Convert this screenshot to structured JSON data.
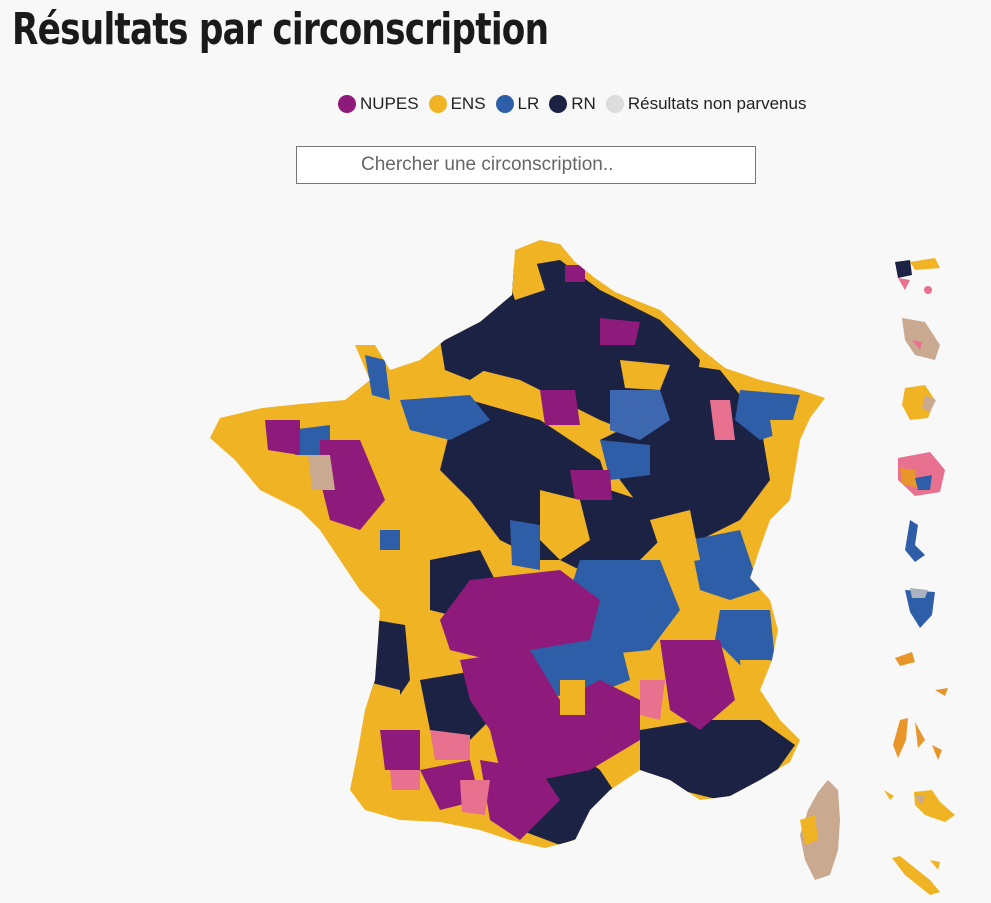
{
  "title": "Résultats par circonscription",
  "legend": [
    {
      "label": "NUPES",
      "color": "#8e1a7b"
    },
    {
      "label": "ENS",
      "color": "#f0b323"
    },
    {
      "label": "LR",
      "color": "#2f5ea8"
    },
    {
      "label": "RN",
      "color": "#1b2244"
    },
    {
      "label": "Résultats non parvenus",
      "color": "#dcdcdc"
    }
  ],
  "search": {
    "placeholder": "Chercher une circonscription.."
  },
  "colors": {
    "nupes": "#8e1a7b",
    "ens": "#f0b323",
    "lr": "#2f5ea8",
    "rn": "#1b2244",
    "other_pink": "#e8718f",
    "regionalist": "#c9a98f",
    "overseas_orange": "#e8962a",
    "lr_light": "#3d68b0"
  }
}
